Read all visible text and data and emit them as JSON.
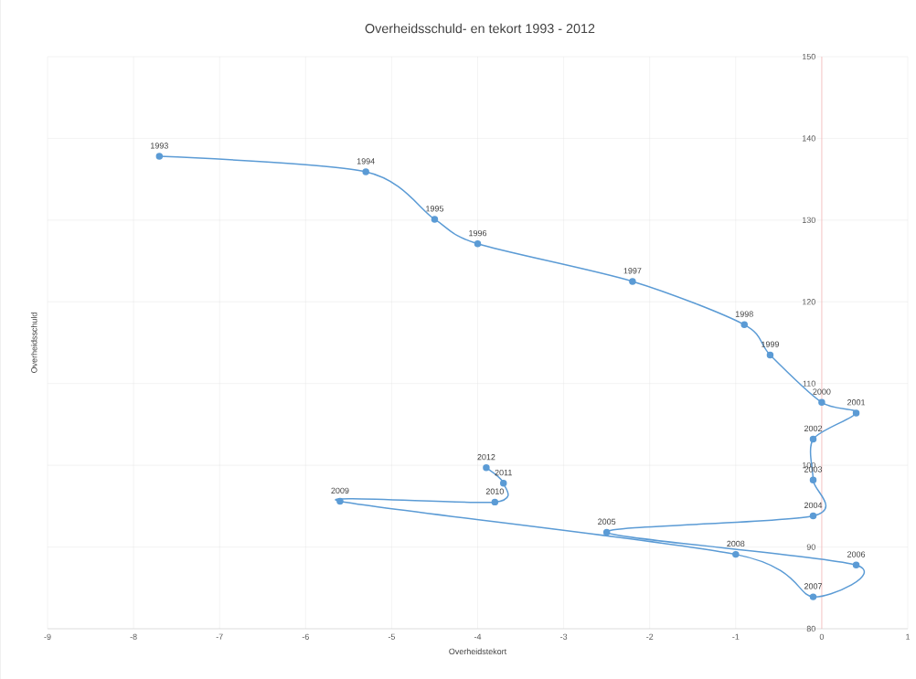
{
  "chart_data": {
    "type": "line",
    "title": "Overheidsschuld- en tekort 1993 - 2012",
    "xlabel": "Overheidstekort",
    "ylabel": "Overheidsschuld",
    "xlim": [
      -9,
      1
    ],
    "xticks": [
      -9,
      -8,
      -7,
      -6,
      -5,
      -4,
      -3,
      -2,
      -1,
      0,
      1
    ],
    "ylim": [
      80,
      150
    ],
    "yticks": [
      80,
      90,
      100,
      110,
      120,
      130,
      140,
      150
    ],
    "grid": true,
    "marker": "circle",
    "line_style": "solid",
    "series": [
      {
        "color": "#5b9bd5",
        "x": [
          -7.7,
          -5.3,
          -4.5,
          -4.0,
          -2.2,
          -0.9,
          -0.6,
          0.0,
          0.4,
          -0.1,
          -0.1,
          -0.1,
          -2.5,
          0.4,
          -0.1,
          -1.0,
          -5.6,
          -3.8,
          -3.7,
          -3.9
        ],
        "values": [
          137.8,
          135.9,
          130.1,
          127.1,
          122.5,
          117.2,
          113.5,
          107.7,
          106.4,
          103.2,
          98.2,
          93.8,
          91.8,
          87.8,
          83.9,
          89.1,
          95.6,
          95.5,
          97.8,
          99.7
        ]
      }
    ],
    "annotations": [
      {
        "text": "1993",
        "x": -7.7,
        "y": 137.8
      },
      {
        "text": "1994",
        "x": -5.3,
        "y": 135.9
      },
      {
        "text": "1995",
        "x": -4.5,
        "y": 130.1
      },
      {
        "text": "1996",
        "x": -4.0,
        "y": 127.1
      },
      {
        "text": "1997",
        "x": -2.2,
        "y": 122.5
      },
      {
        "text": "1998",
        "x": -0.9,
        "y": 117.2
      },
      {
        "text": "1999",
        "x": -0.6,
        "y": 113.5
      },
      {
        "text": "2000",
        "x": 0.0,
        "y": 107.7
      },
      {
        "text": "2001",
        "x": 0.4,
        "y": 106.4
      },
      {
        "text": "2002",
        "x": -0.1,
        "y": 103.2
      },
      {
        "text": "2003",
        "x": -0.1,
        "y": 98.2
      },
      {
        "text": "2004",
        "x": -0.1,
        "y": 93.8
      },
      {
        "text": "2005",
        "x": -2.5,
        "y": 91.8
      },
      {
        "text": "2006",
        "x": 0.4,
        "y": 87.8
      },
      {
        "text": "2007",
        "x": -0.1,
        "y": 83.9
      },
      {
        "text": "2008",
        "x": -1.0,
        "y": 89.1
      },
      {
        "text": "2009",
        "x": -5.6,
        "y": 95.6
      },
      {
        "text": "2010",
        "x": -3.8,
        "y": 95.5
      },
      {
        "text": "2011",
        "x": -3.7,
        "y": 97.8
      },
      {
        "text": "2012",
        "x": -3.9,
        "y": 99.7
      }
    ]
  }
}
